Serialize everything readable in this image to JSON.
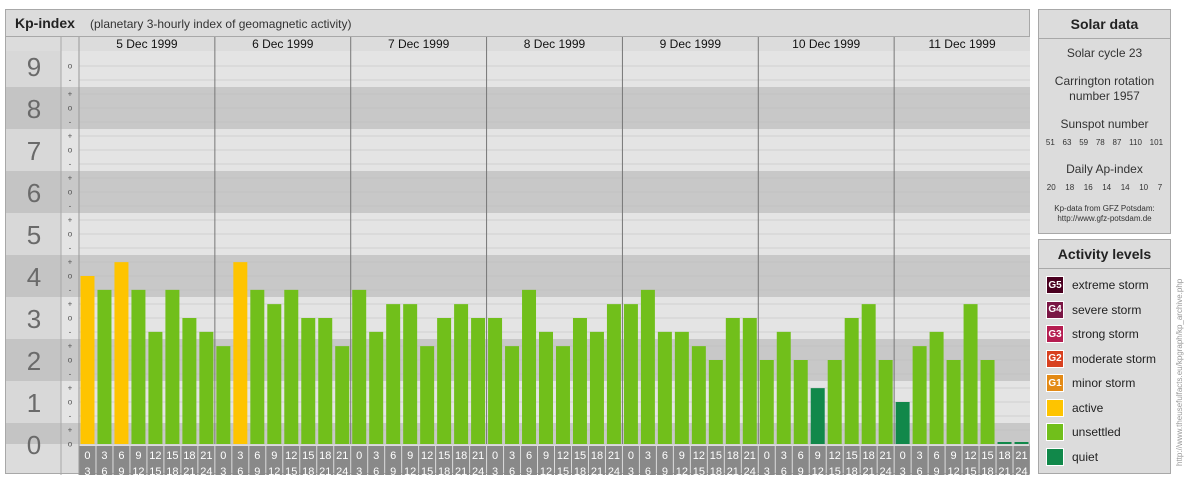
{
  "header": {
    "title": "Kp-index",
    "subtitle": "(planetary 3-hourly index of geomagnetic activity)"
  },
  "chart_data": {
    "type": "bar",
    "title": "Kp-index",
    "subtitle": "(planetary 3-hourly index of geomagnetic activity)",
    "y_ticks": [
      "0",
      "1",
      "2",
      "3",
      "4",
      "5",
      "6",
      "7",
      "8",
      "9"
    ],
    "minor_ticks": [
      "o",
      "+",
      "-",
      "o",
      "+",
      "-",
      "o",
      "+",
      "-",
      "o",
      "+",
      "-",
      "o",
      "+",
      "-",
      "o",
      "+",
      "-",
      "o",
      "+",
      "-",
      "o",
      "+",
      "-",
      "o",
      "+",
      "-",
      "o"
    ],
    "ylim": [
      0,
      9
    ],
    "days": [
      "5 Dec 1999",
      "6 Dec 1999",
      "7 Dec 1999",
      "8 Dec 1999",
      "9 Dec 1999",
      "10 Dec 1999",
      "11 Dec 1999"
    ],
    "interval_start": [
      "0",
      "3",
      "6",
      "9",
      "12",
      "15",
      "18",
      "21"
    ],
    "interval_end": [
      "3",
      "6",
      "9",
      "12",
      "15",
      "18",
      "21",
      "24"
    ],
    "values": [
      4.0,
      3.67,
      4.33,
      3.67,
      2.67,
      3.67,
      3.0,
      2.67,
      2.33,
      4.33,
      3.67,
      3.33,
      3.67,
      3.0,
      3.0,
      2.33,
      3.67,
      2.67,
      3.33,
      3.33,
      2.33,
      3.0,
      3.33,
      3.0,
      3.0,
      2.33,
      3.67,
      2.67,
      2.33,
      3.0,
      2.67,
      3.33,
      3.33,
      3.67,
      2.67,
      2.67,
      2.33,
      2.0,
      3.0,
      3.0,
      2.0,
      2.67,
      2.0,
      1.33,
      2.0,
      3.0,
      3.33,
      2.0,
      1.0,
      2.33,
      2.67,
      2.0,
      3.33,
      2.0,
      0.0,
      0.0
    ],
    "colors": {
      "quiet": "#11884a",
      "unsettled": "#71bf1b",
      "active": "#fec400",
      "plot_light": "#e4e4e4",
      "plot_dark": "#c8c8c8",
      "axis_dark": "#898989",
      "divider": "#777777"
    },
    "grid": true
  },
  "solar": {
    "title": "Solar data",
    "cycle": "Solar cycle 23",
    "carrington_1": "Carrington rotation",
    "carrington_2": "number 1957",
    "sunspot_label": "Sunspot number",
    "sunspots": [
      "51",
      "63",
      "59",
      "78",
      "87",
      "110",
      "101"
    ],
    "ap_label": "Daily Ap-index",
    "ap": [
      "20",
      "18",
      "16",
      "14",
      "14",
      "10",
      "7"
    ],
    "source_1": "Kp-data from GFZ Potsdam:",
    "source_2": "http://www.gfz-potsdam.de"
  },
  "activity": {
    "title": "Activity levels",
    "items": [
      {
        "code": "G5",
        "label": "extreme storm",
        "color": "#4a0020"
      },
      {
        "code": "G4",
        "label": "severe storm",
        "color": "#7a1645"
      },
      {
        "code": "G3",
        "label": "strong storm",
        "color": "#b51d51"
      },
      {
        "code": "G2",
        "label": "moderate storm",
        "color": "#d8401f"
      },
      {
        "code": "G1",
        "label": "minor storm",
        "color": "#e38a16"
      },
      {
        "code": "",
        "label": "active",
        "color": "#fec400"
      },
      {
        "code": "",
        "label": "unsettled",
        "color": "#71bf1b"
      },
      {
        "code": "",
        "label": "quiet",
        "color": "#11884a"
      }
    ]
  },
  "watermark": "http://www.theusefulfacts.eu/kpgraph/kp_archive.php"
}
